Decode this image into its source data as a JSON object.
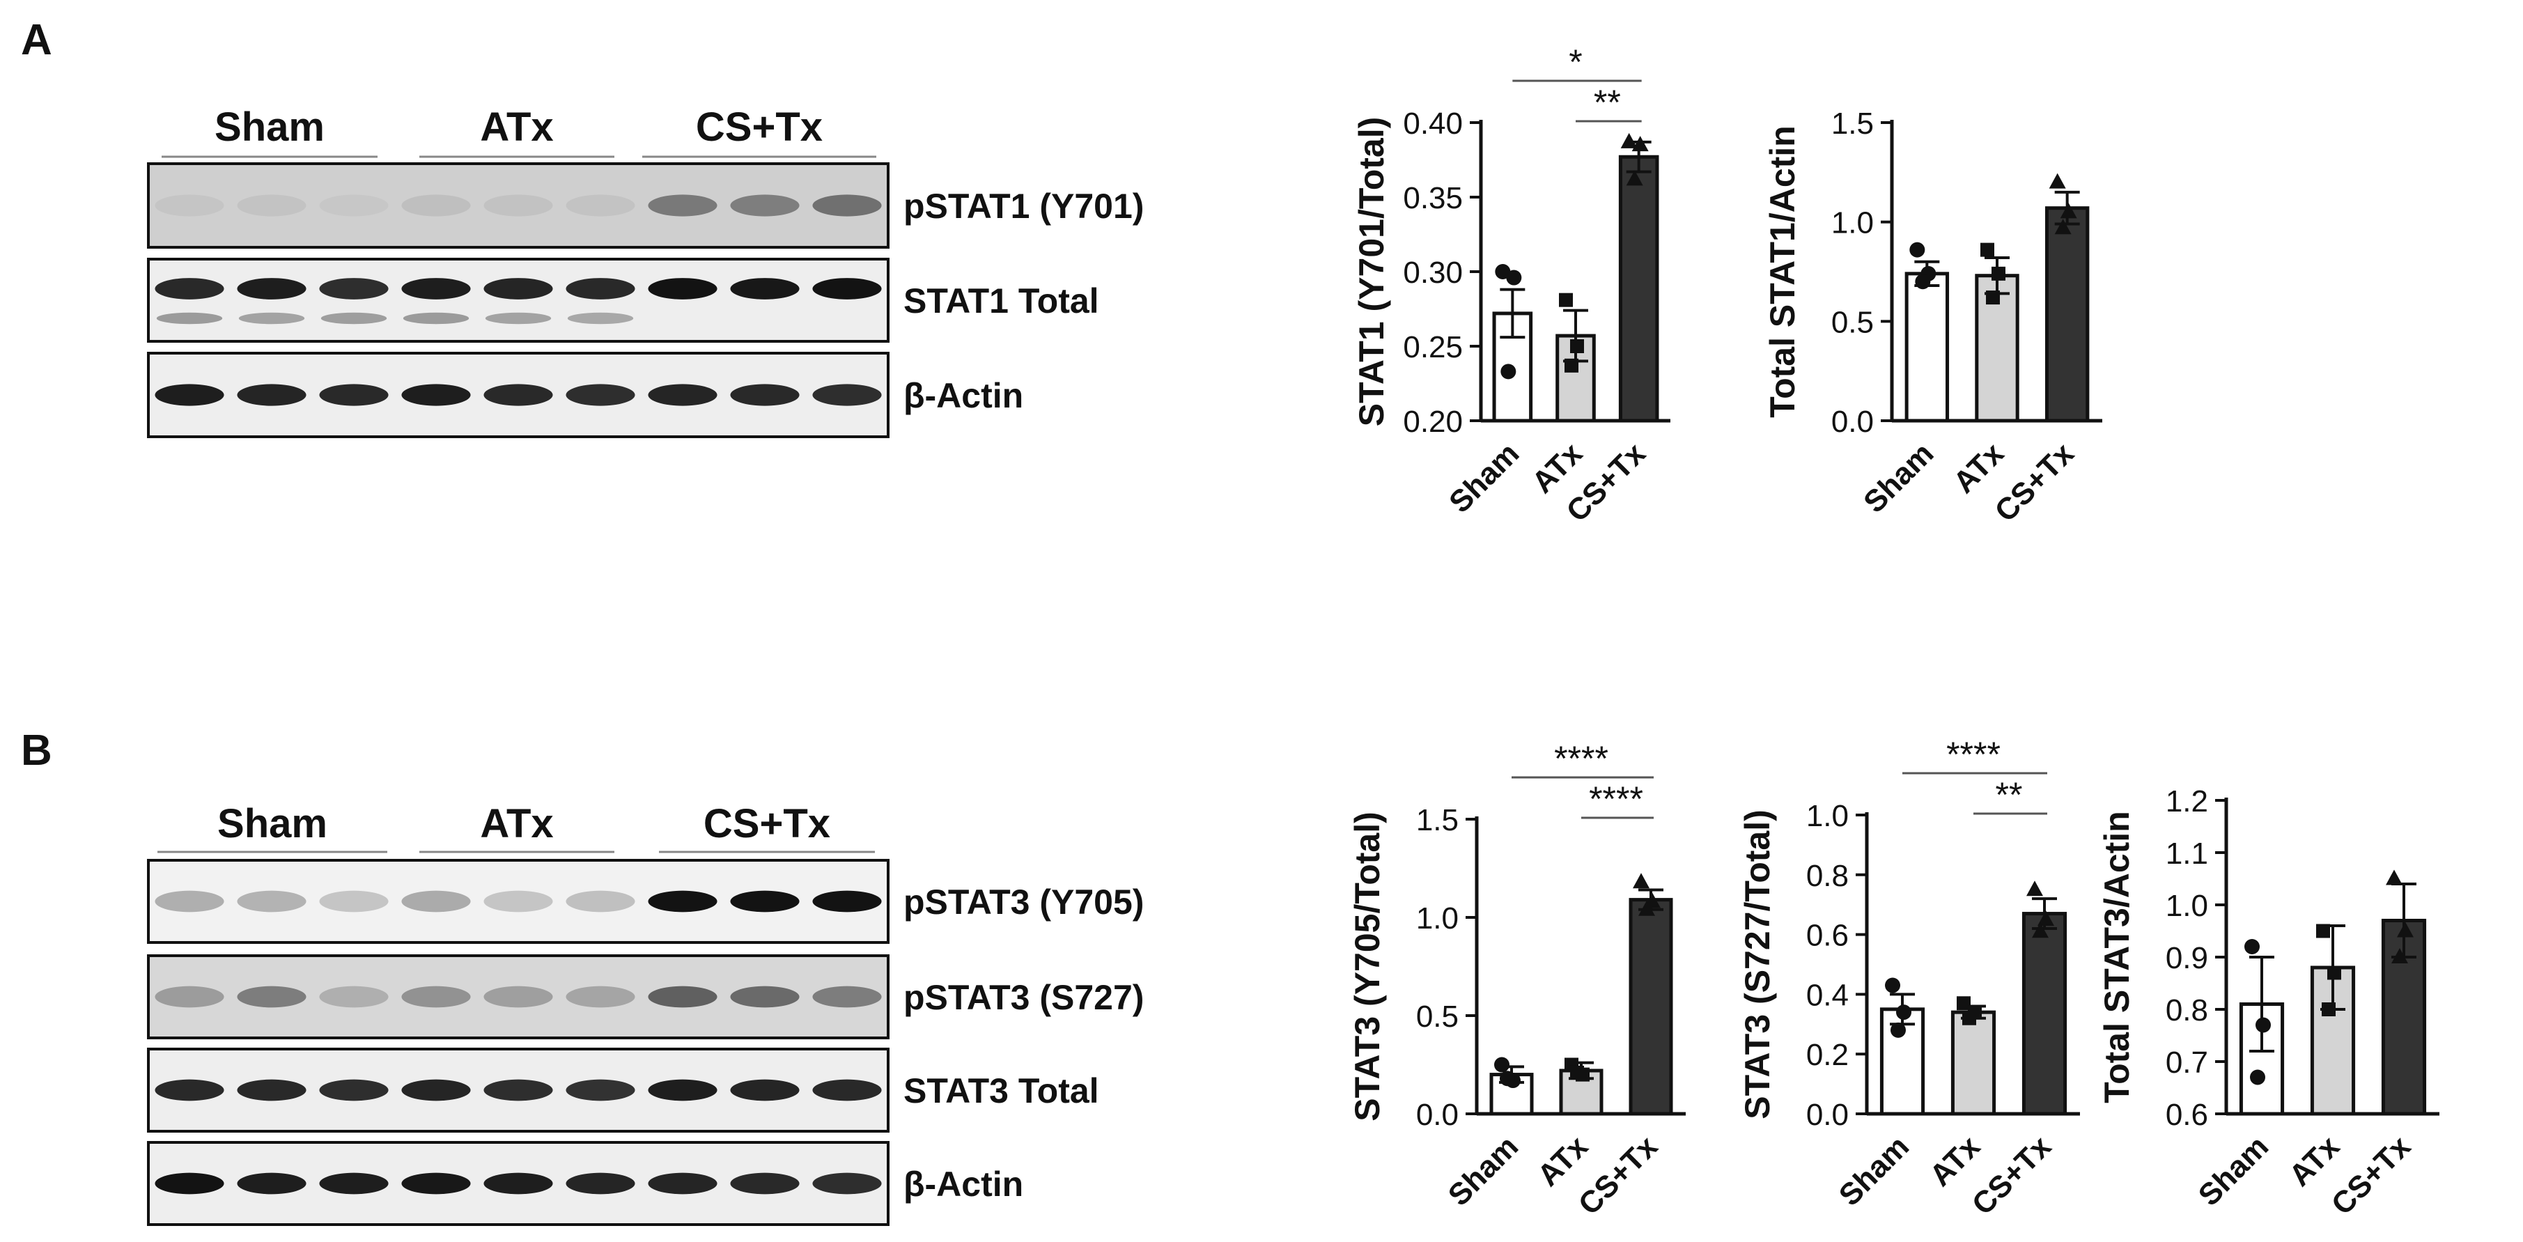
{
  "panels": [
    {
      "letter": "A",
      "blot": {
        "groups": [
          "Sham",
          "ATx",
          "CS+Tx"
        ],
        "lanes": 9,
        "rows": [
          {
            "label": "pSTAT1 (Y701)",
            "intensity": [
              0.05,
              0.06,
              0.04,
              0.08,
              0.07,
              0.06,
              0.45,
              0.42,
              0.5
            ],
            "lower_band": null,
            "background": "#cfcfcf"
          },
          {
            "label": "STAT1 Total",
            "intensity": [
              0.9,
              0.95,
              0.88,
              0.95,
              0.92,
              0.9,
              1.0,
              0.98,
              1.0
            ],
            "lower_band": [
              0.5,
              0.45,
              0.48,
              0.5,
              0.45,
              0.42,
              0,
              0,
              0
            ],
            "background": "#eeeeee"
          },
          {
            "label": "β-Actin",
            "intensity": [
              0.95,
              0.92,
              0.9,
              0.95,
              0.9,
              0.88,
              0.92,
              0.9,
              0.88
            ],
            "lower_band": null,
            "background": "#eeeeee"
          }
        ]
      }
    },
    {
      "letter": "B",
      "blot": {
        "groups": [
          "Sham",
          "ATx",
          "CS+Tx"
        ],
        "lanes": 9,
        "rows": [
          {
            "label": "pSTAT3 (Y705)",
            "intensity": [
              0.3,
              0.28,
              0.2,
              0.32,
              0.2,
              0.22,
              1.0,
              1.0,
              1.0
            ],
            "lower_band": null,
            "background": "#f2f2f2"
          },
          {
            "label": "pSTAT3 (S727)",
            "intensity": [
              0.3,
              0.45,
              0.2,
              0.35,
              0.28,
              0.25,
              0.6,
              0.55,
              0.45
            ],
            "lower_band": null,
            "background": "#d7d7d7"
          },
          {
            "label": "STAT3 Total",
            "intensity": [
              0.9,
              0.9,
              0.88,
              0.92,
              0.88,
              0.86,
              0.95,
              0.92,
              0.9
            ],
            "lower_band": null,
            "background": "#eeeeee"
          },
          {
            "label": "β-Actin",
            "intensity": [
              1.0,
              0.95,
              0.95,
              0.98,
              0.95,
              0.92,
              0.92,
              0.9,
              0.88
            ],
            "lower_band": null,
            "background": "#eeeeee"
          }
        ]
      }
    }
  ],
  "colors": {
    "sham": "#ffffff",
    "atx": "#d4d4d4",
    "cstx": "#333333",
    "ink": "#111111"
  },
  "chart_data": [
    {
      "type": "bar",
      "categories": [
        "Sham",
        "ATx",
        "CS+Tx"
      ],
      "values": [
        0.272,
        0.257,
        0.377
      ],
      "errors": [
        0.016,
        0.017,
        0.01
      ],
      "points": [
        [
          0.3,
          0.296,
          0.233
        ],
        [
          0.281,
          0.25,
          0.237
        ],
        [
          0.387,
          0.385,
          0.362
        ]
      ],
      "markers": [
        "circle",
        "square",
        "triangle"
      ],
      "ylabel": "STAT1 (Y701/Total)",
      "ylim": [
        0.2,
        0.4
      ],
      "yticks": [
        "0.20",
        "0.25",
        "0.30",
        "0.35",
        "0.40"
      ],
      "significance": [
        {
          "from": 0,
          "to": 2,
          "label": "*"
        },
        {
          "from": 1,
          "to": 2,
          "label": "**"
        }
      ]
    },
    {
      "type": "bar",
      "categories": [
        "Sham",
        "ATx",
        "CS+Tx"
      ],
      "values": [
        0.74,
        0.73,
        1.07
      ],
      "errors": [
        0.06,
        0.09,
        0.08
      ],
      "points": [
        [
          0.86,
          0.74,
          0.7
        ],
        [
          0.86,
          0.74,
          0.62
        ],
        [
          1.2,
          1.05,
          0.97
        ]
      ],
      "markers": [
        "circle",
        "square",
        "triangle"
      ],
      "ylabel": "Total STAT1/Actin",
      "ylim": [
        0,
        1.5
      ],
      "yticks": [
        "0.0",
        "0.5",
        "1.0",
        "1.5"
      ],
      "significance": []
    },
    {
      "type": "bar",
      "categories": [
        "Sham",
        "ATx",
        "CS+Tx"
      ],
      "values": [
        0.2,
        0.22,
        1.09
      ],
      "errors": [
        0.04,
        0.04,
        0.05
      ],
      "points": [
        [
          0.25,
          0.17,
          0.18
        ],
        [
          0.25,
          0.2,
          0.21
        ],
        [
          1.18,
          1.08,
          1.04
        ]
      ],
      "markers": [
        "circle",
        "square",
        "triangle"
      ],
      "ylabel": "STAT3 (Y705/Total)",
      "ylim": [
        0,
        1.5
      ],
      "yticks": [
        "0.0",
        "0.5",
        "1.0",
        "1.5"
      ],
      "significance": [
        {
          "from": 0,
          "to": 2,
          "label": "****"
        },
        {
          "from": 1,
          "to": 2,
          "label": "****"
        }
      ]
    },
    {
      "type": "bar",
      "categories": [
        "Sham",
        "ATx",
        "CS+Tx"
      ],
      "values": [
        0.35,
        0.34,
        0.67
      ],
      "errors": [
        0.05,
        0.02,
        0.05
      ],
      "points": [
        [
          0.43,
          0.34,
          0.28
        ],
        [
          0.37,
          0.34,
          0.32
        ],
        [
          0.75,
          0.65,
          0.61
        ]
      ],
      "markers": [
        "circle",
        "square",
        "triangle"
      ],
      "ylabel": "STAT3 (S727/Total)",
      "ylim": [
        0,
        1.0
      ],
      "yticks": [
        "0.0",
        "0.2",
        "0.4",
        "0.6",
        "0.8",
        "1.0"
      ],
      "significance": [
        {
          "from": 0,
          "to": 2,
          "label": "****"
        },
        {
          "from": 1,
          "to": 2,
          "label": "**"
        }
      ]
    },
    {
      "type": "bar",
      "categories": [
        "Sham",
        "ATx",
        "CS+Tx"
      ],
      "values": [
        0.81,
        0.88,
        0.97
      ],
      "errors": [
        0.09,
        0.08,
        0.07
      ],
      "points": [
        [
          0.92,
          0.77,
          0.67
        ],
        [
          0.95,
          0.87,
          0.8
        ],
        [
          1.05,
          0.95,
          0.9
        ]
      ],
      "markers": [
        "circle",
        "square",
        "triangle"
      ],
      "ylabel": "Total STAT3/Actin",
      "ylim": [
        0.6,
        1.2
      ],
      "yticks": [
        "0.6",
        "0.7",
        "0.8",
        "0.9",
        "1.0",
        "1.1",
        "1.2"
      ],
      "significance": []
    }
  ]
}
